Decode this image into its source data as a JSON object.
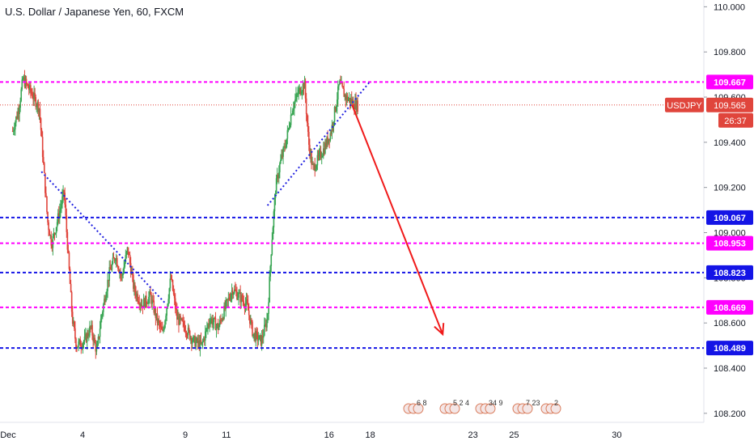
{
  "header": {
    "title": "U.S. Dollar / Japanese Yen, 60, FXCM"
  },
  "colors": {
    "bull": "#26a69a",
    "bear": "#ef5350",
    "candle_up": "#3aa655",
    "candle_down": "#e0453c",
    "magenta": "#ff00ff",
    "blue": "#1414e6",
    "dotted": "#2020e0",
    "arrow": "#f01a1a",
    "price_line": "#e0453c",
    "grid": "#f0f3fa",
    "axis_text": "#131722"
  },
  "chart_data": {
    "type": "candlestick",
    "symbol_label": "USDJPY",
    "last_price": "109.565",
    "countdown": "26:37",
    "ylim": [
      108.16,
      110.03
    ],
    "y_ticks": [
      "110.000",
      "109.800",
      "109.600",
      "109.400",
      "109.200",
      "109.000",
      "108.800",
      "108.600",
      "108.400",
      "108.200"
    ],
    "x_ticks": [
      "Dec",
      "4",
      "9",
      "11",
      "16",
      "18",
      "23",
      "25",
      "30"
    ],
    "horizontal_levels": [
      {
        "value": 109.667,
        "label": "109.667",
        "color": "magenta"
      },
      {
        "value": 109.067,
        "label": "109.067",
        "color": "blue"
      },
      {
        "value": 108.953,
        "label": "108.953",
        "color": "magenta"
      },
      {
        "value": 108.823,
        "label": "108.823",
        "color": "blue"
      },
      {
        "value": 108.669,
        "label": "108.669",
        "color": "magenta"
      },
      {
        "value": 108.489,
        "label": "108.489",
        "color": "blue"
      }
    ],
    "trendlines": [
      {
        "from": [
          "Dec 2",
          109.27
        ],
        "to": [
          "Dec 8",
          108.69
        ]
      },
      {
        "from": [
          "Dec 13",
          109.12
        ],
        "to": [
          "Dec 18",
          109.67
        ]
      }
    ],
    "projection_arrow": {
      "from": [
        "Dec 17",
        109.565
      ],
      "to": [
        "Dec 22",
        108.55
      ]
    },
    "event_markers": [
      "6",
      "8",
      "5",
      "2",
      "4",
      "34",
      "9",
      "7",
      "23",
      "2"
    ]
  }
}
